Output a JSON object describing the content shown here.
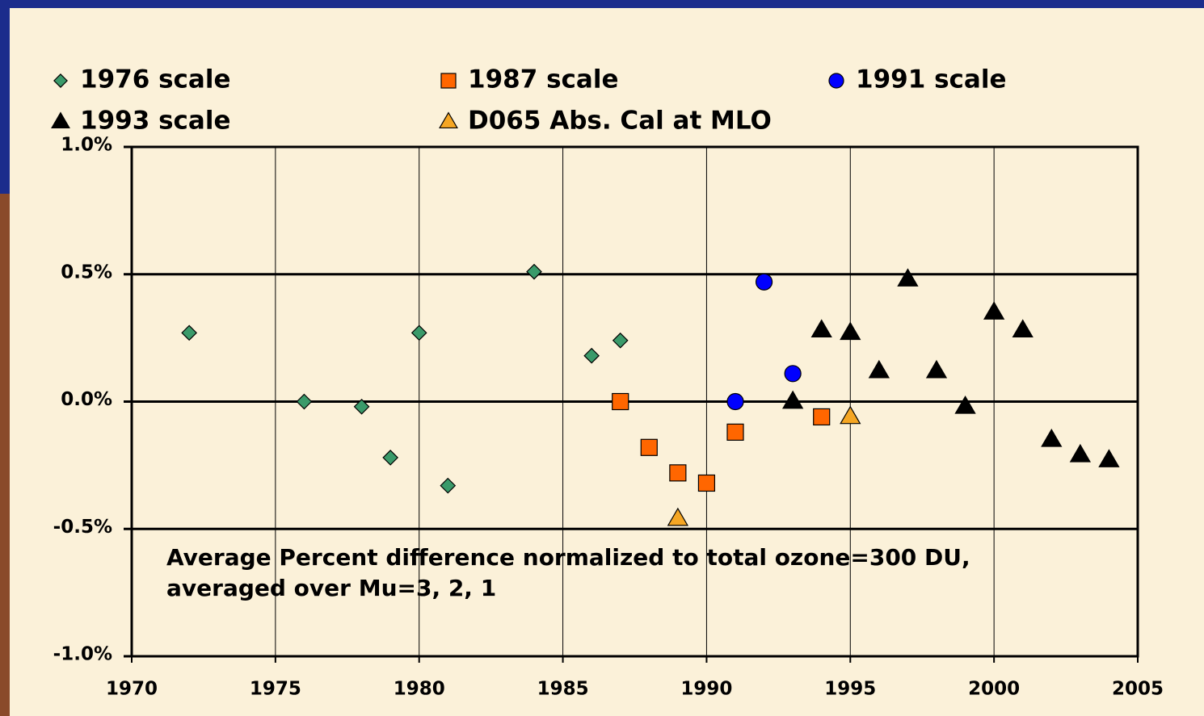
{
  "chart_data": {
    "type": "scatter",
    "xlim": [
      1970,
      2005
    ],
    "xticks": [
      1970,
      1975,
      1980,
      1985,
      1990,
      1995,
      2000,
      2005
    ],
    "ylim": [
      -1.0,
      1.0
    ],
    "yticks": [
      {
        "value": -1.0,
        "label": "-1.0%"
      },
      {
        "value": -0.5,
        "label": "-0.5%"
      },
      {
        "value": 0.0,
        "label": "0.0%"
      },
      {
        "value": 0.5,
        "label": "0.5%"
      },
      {
        "value": 1.0,
        "label": "1.0%"
      }
    ],
    "grid": true,
    "annotations": [
      "Average Percent difference normalized to total ozone=300 DU,",
      "averaged over Mu=3, 2, 1"
    ],
    "series": [
      {
        "name": "1976 scale",
        "color": "#3a9a6a",
        "marker": "diamond",
        "x": [
          1972,
          1976,
          1978,
          1979,
          1980,
          1981,
          1984,
          1986,
          1987
        ],
        "values": [
          0.27,
          0.0,
          -0.02,
          -0.22,
          0.27,
          -0.33,
          0.51,
          0.18,
          0.24
        ]
      },
      {
        "name": "1987 scale",
        "color": "#ff6600",
        "marker": "square",
        "x": [
          1987,
          1988,
          1989,
          1990,
          1991,
          1994
        ],
        "values": [
          0.0,
          -0.18,
          -0.28,
          -0.32,
          -0.12,
          -0.06
        ]
      },
      {
        "name": "1991 scale",
        "color": "#0000ff",
        "marker": "circle",
        "x": [
          1991,
          1992,
          1993
        ],
        "values": [
          0.0,
          0.47,
          0.11
        ]
      },
      {
        "name": "1993 scale",
        "color": "#000000",
        "marker": "triangle",
        "x": [
          1993,
          1994,
          1995,
          1996,
          1997,
          1998,
          1999,
          2000,
          2001,
          2002,
          2003,
          2004
        ],
        "values": [
          0.0,
          0.28,
          0.27,
          0.12,
          0.48,
          0.12,
          -0.02,
          0.35,
          0.28,
          -0.15,
          -0.21,
          -0.23
        ]
      },
      {
        "name": "D065 Abs. Cal at MLO",
        "color": "#f5a623",
        "marker": "triangle",
        "x": [
          1989,
          1995
        ],
        "values": [
          -0.46,
          -0.06
        ]
      }
    ]
  }
}
